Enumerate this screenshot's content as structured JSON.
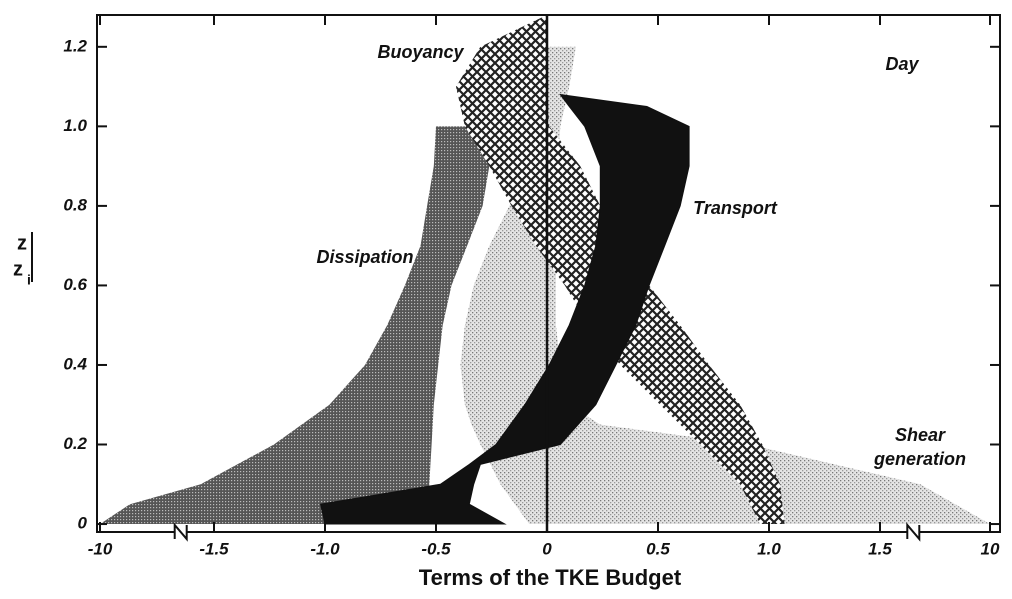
{
  "chart_data": {
    "type": "band",
    "orientation": "horizontal",
    "xlabel": "Terms of the TKE Budget",
    "ylabel": {
      "numerator": "z",
      "denominator": "z",
      "subscript": "i"
    },
    "annotation": "Day",
    "xlim": [
      -10,
      10
    ],
    "xbreaks": [
      -1.65,
      1.65
    ],
    "xticks": [
      -10,
      -1.5,
      {
        "value": -1,
        "label": "-1.0"
      },
      -0.5,
      0,
      0.5,
      {
        "value": 1,
        "label": "1.0"
      },
      1.5,
      10
    ],
    "ylim": [
      -0.02,
      1.28
    ],
    "yticks": [
      0,
      0.2,
      0.4,
      0.6,
      0.8,
      {
        "value": 1,
        "label": "1.0"
      },
      1.2
    ],
    "series": [
      {
        "name": "Shear generation",
        "pattern": "light-dots",
        "z": [
          0,
          0.1,
          0.2,
          0.25,
          0.3,
          0.4,
          0.5,
          0.6,
          0.7,
          0.8,
          0.9,
          1.0,
          1.1,
          1.2
        ],
        "x_low": [
          -0.08,
          -0.21,
          -0.3,
          -0.34,
          -0.37,
          -0.39,
          -0.37,
          -0.33,
          -0.26,
          -0.17,
          -0.08,
          0,
          0,
          0
        ],
        "x_high": [
          10,
          2.4,
          0.91,
          0.24,
          0.1,
          0.06,
          0.04,
          0.04,
          0.04,
          0.04,
          0.05,
          0.06,
          0.1,
          0.13
        ]
      },
      {
        "name": "Dissipation",
        "pattern": "dense-dots",
        "z": [
          0,
          0.05,
          0.1,
          0.2,
          0.3,
          0.4,
          0.5,
          0.6,
          0.7,
          0.8,
          0.9,
          1.0
        ],
        "x_low": [
          -10,
          -6.9,
          -1.56,
          -1.23,
          -0.98,
          -0.82,
          -0.72,
          -0.64,
          -0.57,
          -0.54,
          -0.51,
          -0.5
        ],
        "x_high": [
          -0.53,
          -0.53,
          -0.53,
          -0.52,
          -0.51,
          -0.49,
          -0.47,
          -0.43,
          -0.36,
          -0.29,
          -0.26,
          -0.35
        ]
      },
      {
        "name": "Buoyancy",
        "pattern": "crosshatch",
        "z": [
          0,
          0.1,
          0.2,
          0.3,
          0.4,
          0.5,
          0.6,
          0.7,
          0.8,
          0.9,
          1.0,
          1.1,
          1.2,
          1.28
        ],
        "x_low": [
          0.96,
          0.87,
          0.69,
          0.51,
          0.33,
          0.19,
          0.08,
          -0.05,
          -0.16,
          -0.26,
          -0.37,
          -0.41,
          -0.3,
          0
        ],
        "x_high": [
          1.07,
          1.05,
          0.97,
          0.87,
          0.73,
          0.6,
          0.46,
          0.35,
          0.24,
          0.15,
          0.01,
          0,
          0,
          0
        ]
      },
      {
        "name": "Transport",
        "pattern": "solid",
        "z": [
          0,
          0.05,
          0.1,
          0.15,
          0.2,
          0.3,
          0.4,
          0.5,
          0.6,
          0.7,
          0.8,
          0.9,
          1.0,
          1.05,
          1.08
        ],
        "x_low": [
          -1.0,
          -1.02,
          -0.48,
          -0.35,
          -0.23,
          -0.1,
          0.01,
          0.1,
          0.17,
          0.22,
          0.24,
          0.24,
          0.17,
          0.1,
          0.06
        ],
        "x_high": [
          -0.19,
          -0.35,
          -0.33,
          -0.3,
          0.06,
          0.22,
          0.31,
          0.4,
          0.46,
          0.53,
          0.6,
          0.64,
          0.64,
          0.45,
          0.06
        ]
      }
    ]
  }
}
